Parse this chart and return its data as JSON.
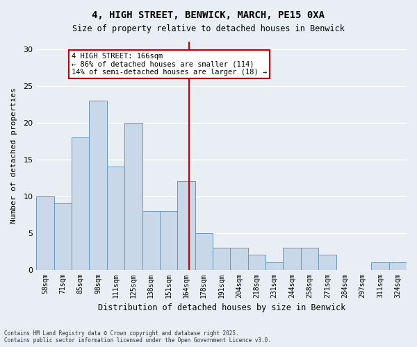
{
  "title": "4, HIGH STREET, BENWICK, MARCH, PE15 0XA",
  "subtitle": "Size of property relative to detached houses in Benwick",
  "xlabel": "Distribution of detached houses by size in Benwick",
  "ylabel": "Number of detached properties",
  "footer_line1": "Contains HM Land Registry data © Crown copyright and database right 2025.",
  "footer_line2": "Contains public sector information licensed under the Open Government Licence v3.0.",
  "categories": [
    "58sqm",
    "71sqm",
    "85sqm",
    "98sqm",
    "111sqm",
    "125sqm",
    "138sqm",
    "151sqm",
    "164sqm",
    "178sqm",
    "191sqm",
    "204sqm",
    "218sqm",
    "231sqm",
    "244sqm",
    "258sqm",
    "271sqm",
    "284sqm",
    "297sqm",
    "311sqm",
    "324sqm"
  ],
  "values": [
    10,
    9,
    18,
    23,
    14,
    20,
    8,
    8,
    12,
    5,
    3,
    3,
    2,
    1,
    3,
    3,
    2,
    0,
    0,
    1,
    1
  ],
  "bar_color": "#c8d8e8",
  "bar_edge_color": "#6699bb",
  "background_color": "#e8eef4",
  "grid_color": "#ffffff",
  "vline_value": 166,
  "vline_color": "#cc0000",
  "vline_x_index": 8.3,
  "annotation_text": "4 HIGH STREET: 166sqm\n← 86% of detached houses are smaller (114)\n14% of semi-detached houses are larger (18) →",
  "annotation_box_color": "#ffffff",
  "annotation_box_edge": "#cc0000",
  "ylim": [
    0,
    31
  ],
  "yticks": [
    0,
    5,
    10,
    15,
    20,
    25,
    30
  ]
}
